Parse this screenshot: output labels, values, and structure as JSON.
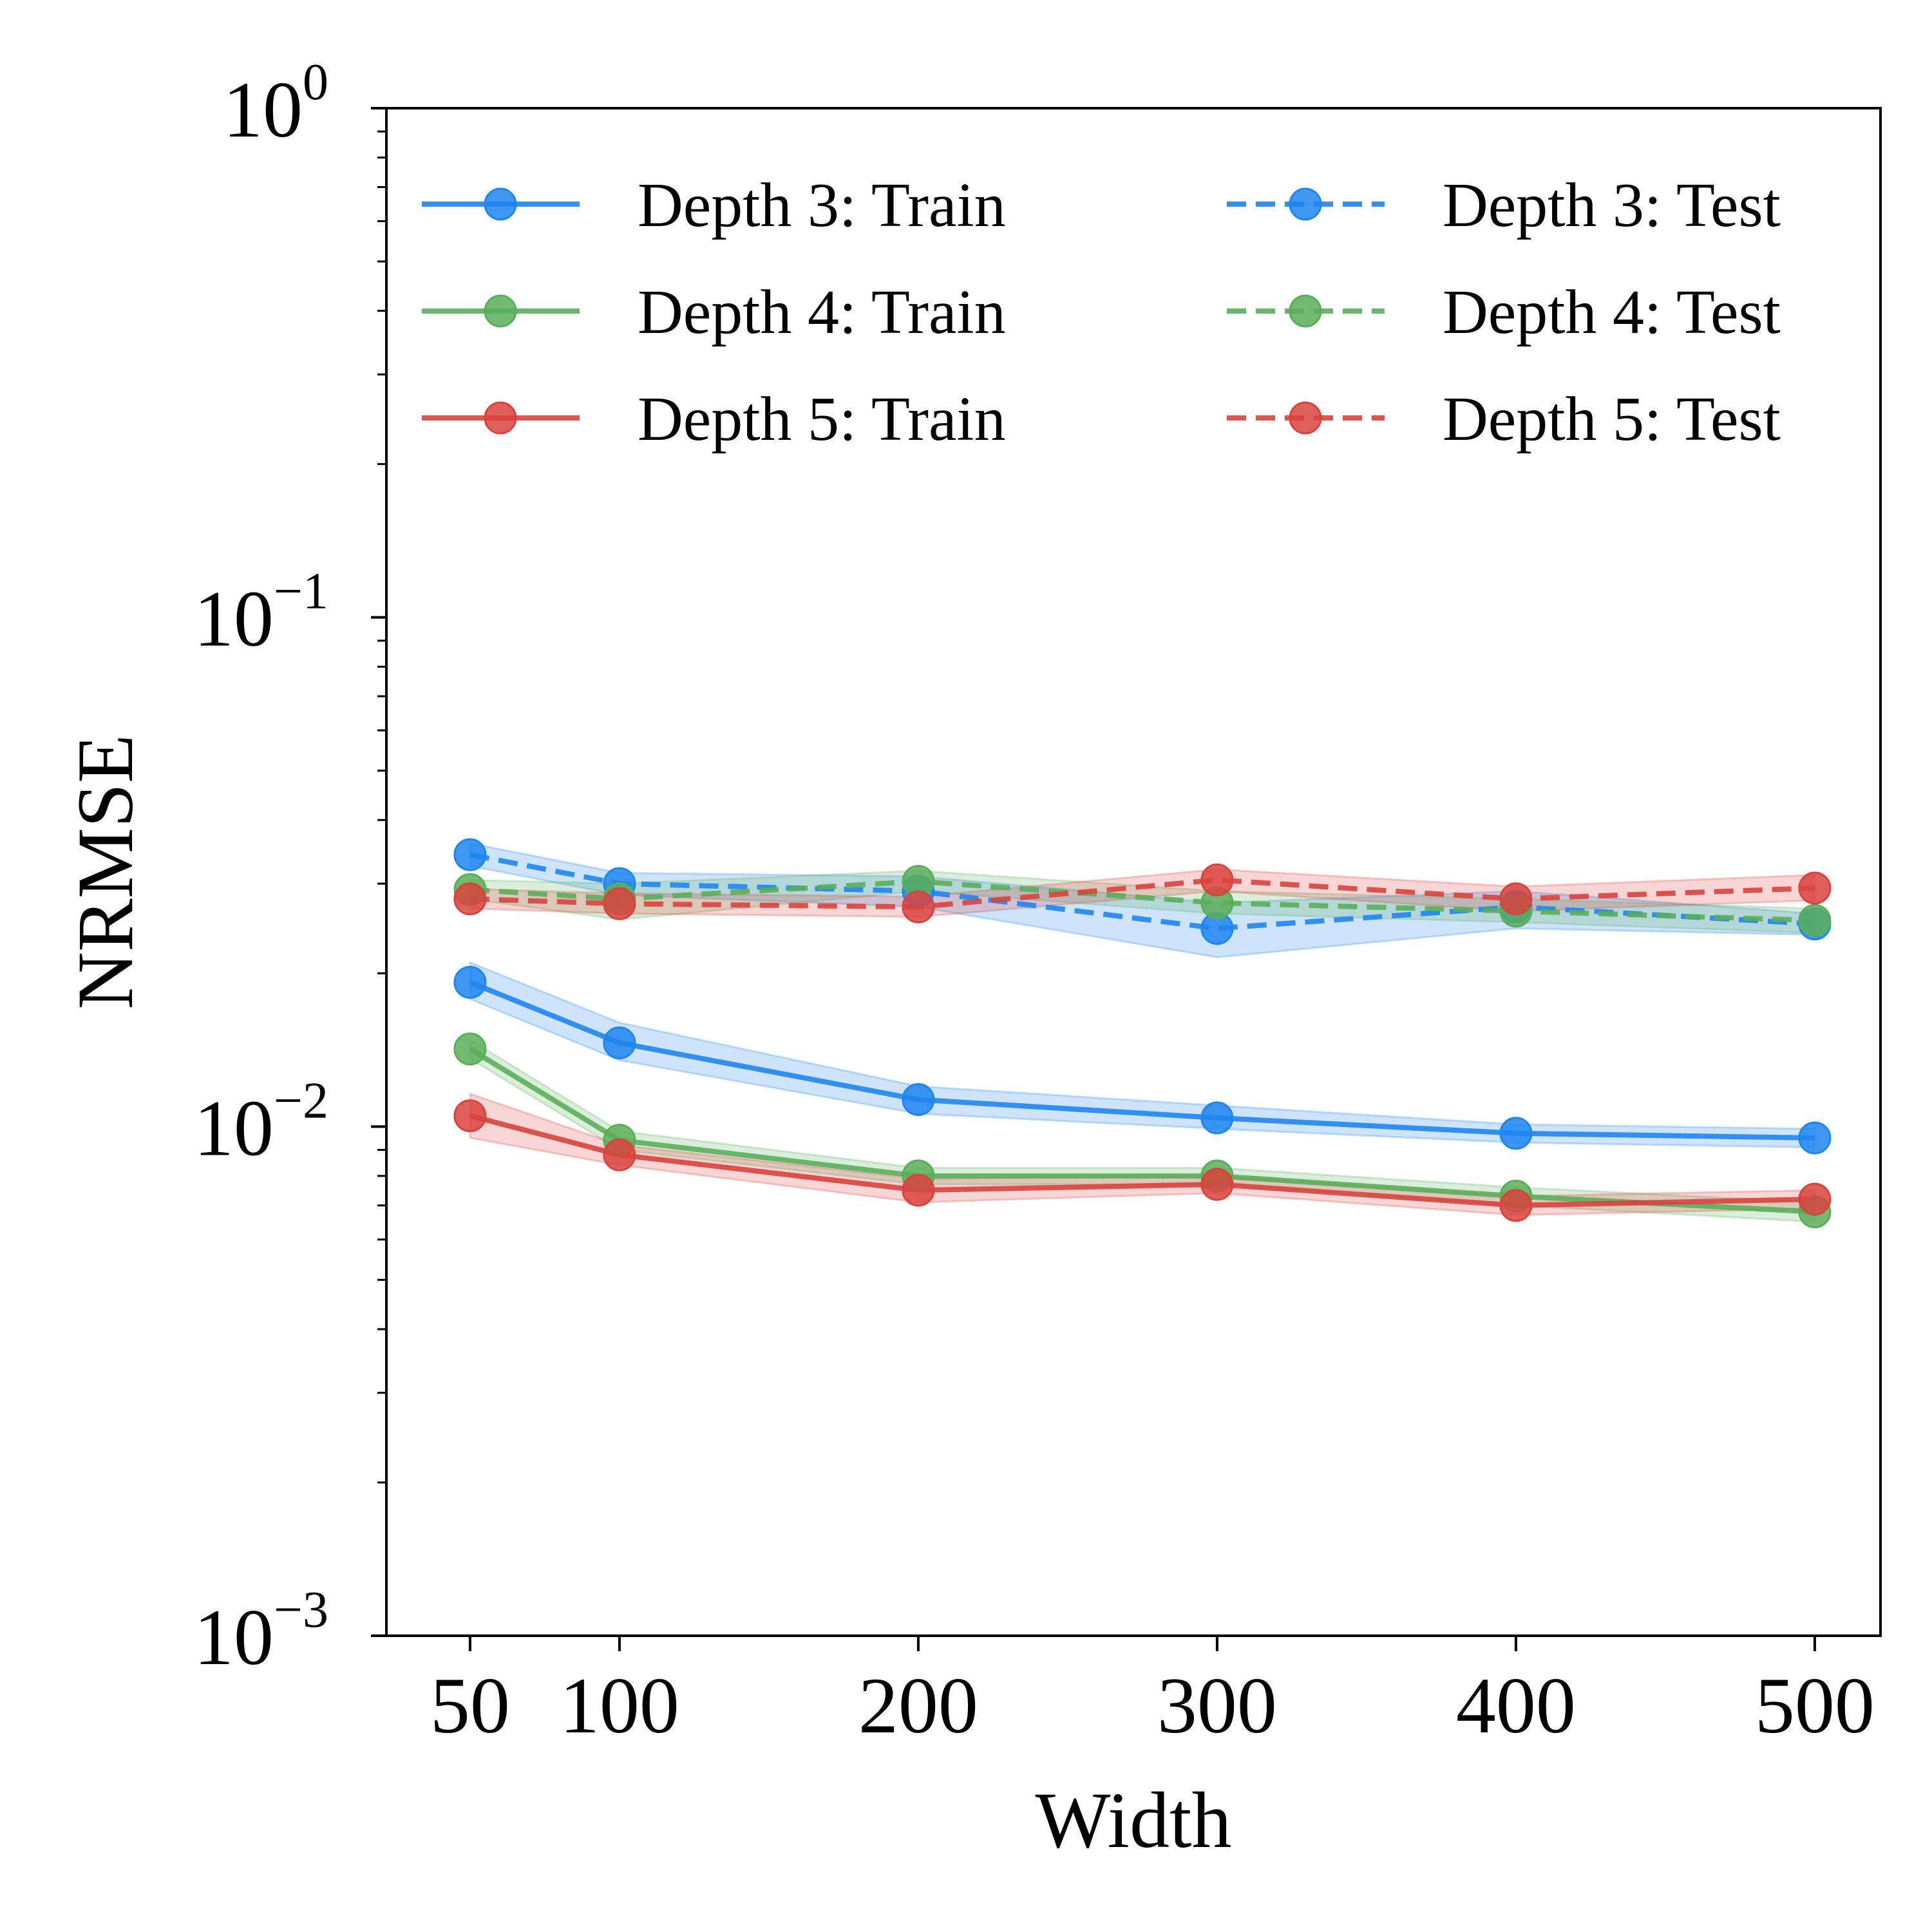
{
  "chart_data": {
    "type": "line",
    "xlabel": "Width",
    "ylabel": "NRMSE",
    "yscale": "log",
    "ylim": [
      0.001,
      1
    ],
    "x": [
      50,
      100,
      200,
      300,
      400,
      500
    ],
    "xticks": [
      "50",
      "100",
      "200",
      "300",
      "400",
      "500"
    ],
    "yticks": [
      {
        "base": "10",
        "exp": "0",
        "value": 1
      },
      {
        "base": "10",
        "exp": "−1",
        "value": 0.1
      },
      {
        "base": "10",
        "exp": "−2",
        "value": 0.01
      },
      {
        "base": "10",
        "exp": "−3",
        "value": 0.001
      }
    ],
    "legend_position": "top",
    "series": [
      {
        "name": "Depth 3: Train",
        "color": "#1f85f0",
        "style": "solid",
        "values": [
          0.0192,
          0.0146,
          0.0113,
          0.0104,
          0.0097,
          0.0095
        ],
        "lower": [
          0.0178,
          0.0135,
          0.0106,
          0.0099,
          0.0093,
          0.0091
        ],
        "upper": [
          0.021,
          0.016,
          0.012,
          0.011,
          0.0101,
          0.0099
        ]
      },
      {
        "name": "Depth 4: Train",
        "color": "#5aae5a",
        "style": "solid",
        "values": [
          0.0142,
          0.0094,
          0.008,
          0.008,
          0.0073,
          0.0068
        ],
        "lower": [
          0.0136,
          0.009,
          0.0077,
          0.0077,
          0.007,
          0.0065
        ],
        "upper": [
          0.0148,
          0.0098,
          0.0083,
          0.0083,
          0.0076,
          0.0071
        ]
      },
      {
        "name": "Depth 5: Train",
        "color": "#d9433e",
        "style": "solid",
        "values": [
          0.0105,
          0.0088,
          0.0075,
          0.0077,
          0.007,
          0.0072
        ],
        "lower": [
          0.0095,
          0.0084,
          0.0071,
          0.0074,
          0.0067,
          0.0069
        ],
        "upper": [
          0.0116,
          0.0092,
          0.0079,
          0.008,
          0.0073,
          0.0075
        ]
      },
      {
        "name": "Depth 3: Test",
        "color": "#1f85f0",
        "style": "dashed",
        "values": [
          0.0342,
          0.03,
          0.029,
          0.0245,
          0.027,
          0.025
        ],
        "lower": [
          0.0325,
          0.0285,
          0.027,
          0.0215,
          0.0245,
          0.0238
        ],
        "upper": [
          0.036,
          0.0315,
          0.031,
          0.0275,
          0.029,
          0.0262
        ]
      },
      {
        "name": "Depth 4: Test",
        "color": "#5aae5a",
        "style": "dashed",
        "values": [
          0.0292,
          0.028,
          0.0303,
          0.0275,
          0.0265,
          0.0254
        ],
        "lower": [
          0.028,
          0.0255,
          0.029,
          0.0262,
          0.0252,
          0.024
        ],
        "upper": [
          0.0305,
          0.03,
          0.0318,
          0.029,
          0.028,
          0.0268
        ]
      },
      {
        "name": "Depth 5: Test",
        "color": "#d9433e",
        "style": "dashed",
        "values": [
          0.028,
          0.0274,
          0.027,
          0.0305,
          0.028,
          0.0294
        ],
        "lower": [
          0.0268,
          0.0262,
          0.0258,
          0.029,
          0.0265,
          0.0278
        ],
        "upper": [
          0.0293,
          0.0287,
          0.0283,
          0.032,
          0.0296,
          0.0312
        ]
      }
    ]
  }
}
